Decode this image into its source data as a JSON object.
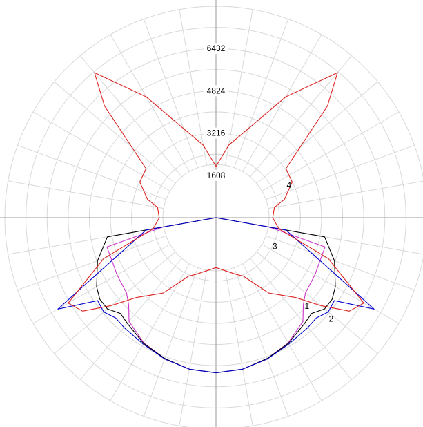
{
  "chart_data": {
    "type": "polar",
    "radial_ticks": [
      "1608",
      "3216",
      "4824",
      "6432"
    ],
    "radial_min": 0,
    "radial_max": 8040,
    "angle_step_deg": 10,
    "angle_convention": "degrees from downward vertical (0 = down, 180 = up)",
    "grid": true,
    "series": [
      {
        "label": "1",
        "color": "#cc33cc",
        "points": [
          [
            0,
            5900
          ],
          [
            10,
            5850
          ],
          [
            20,
            5700
          ],
          [
            30,
            5500
          ],
          [
            40,
            5150
          ],
          [
            45,
            4700
          ],
          [
            50,
            4450
          ],
          [
            60,
            4350
          ],
          [
            70,
            4280
          ],
          [
            75,
            4300
          ],
          [
            80,
            2050
          ],
          [
            85,
            0
          ]
        ]
      },
      {
        "label": "2",
        "color": "#000000",
        "points": [
          [
            0,
            5900
          ],
          [
            10,
            5850
          ],
          [
            20,
            5700
          ],
          [
            30,
            5520
          ],
          [
            40,
            5250
          ],
          [
            45,
            5150
          ],
          [
            50,
            5400
          ],
          [
            55,
            5400
          ],
          [
            60,
            5250
          ],
          [
            70,
            4800
          ],
          [
            80,
            4200
          ],
          [
            85,
            0
          ]
        ]
      },
      {
        "label": "3",
        "color": "#0000cc",
        "points": [
          [
            0,
            5900
          ],
          [
            10,
            5850
          ],
          [
            20,
            5720
          ],
          [
            30,
            5550
          ],
          [
            40,
            5450
          ],
          [
            45,
            5400
          ],
          [
            50,
            5580
          ],
          [
            55,
            5500
          ],
          [
            60,
            6950
          ],
          [
            80,
            2700
          ],
          [
            85,
            0
          ]
        ]
      },
      {
        "label": "4",
        "color": "#dd2222",
        "points": [
          [
            0,
            1900
          ],
          [
            10,
            2050
          ],
          [
            20,
            2300
          ],
          [
            25,
            2450
          ],
          [
            35,
            3500
          ],
          [
            45,
            4300
          ],
          [
            50,
            5200
          ],
          [
            55,
            6200
          ],
          [
            60,
            6500
          ],
          [
            70,
            4550
          ],
          [
            80,
            2430
          ],
          [
            90,
            2160
          ],
          [
            100,
            2260
          ],
          [
            105,
            2700
          ],
          [
            115,
            3200
          ],
          [
            125,
            3250
          ],
          [
            135,
            6000
          ],
          [
            140,
            7200
          ],
          [
            150,
            5300
          ],
          [
            160,
            3600
          ],
          [
            170,
            2800
          ],
          [
            180,
            1950
          ]
        ]
      }
    ],
    "series_label_positions": [
      {
        "label": "1",
        "angle": 45,
        "value": 4900
      },
      {
        "label": "2",
        "angle": 48,
        "value": 5900
      },
      {
        "label": "3",
        "angle": 62,
        "value": 2540
      },
      {
        "label": "4",
        "angle": 112,
        "value": 3000
      }
    ]
  }
}
